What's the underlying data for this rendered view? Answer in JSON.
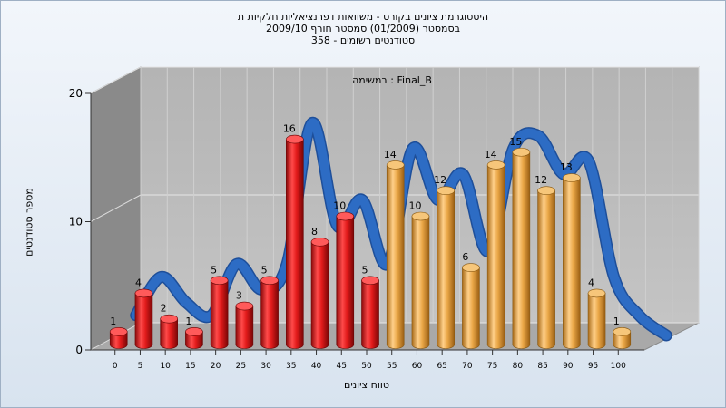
{
  "chart_data": {
    "type": "bar",
    "title_lines": [
      "היסטוגרמת ציונים בקורס - משוואות דפרנציאליות חלקיות ת",
      "בסמסטר  (01/2009)  סמסטר חורף 2009/10",
      "סטודנטים רשומים - 358"
    ],
    "task_label": "במשימה : Final_B",
    "xlabel": "טווח ציונים",
    "ylabel": "מספר סטודנטים",
    "x_ticks": [
      "0",
      "5",
      "10",
      "15",
      "20",
      "25",
      "30",
      "35",
      "40",
      "45",
      "50",
      "55",
      "60",
      "65",
      "70",
      "75",
      "80",
      "85",
      "90",
      "95",
      "100"
    ],
    "y_ticks": [
      0,
      10,
      20
    ],
    "ylim": [
      0,
      20
    ],
    "values": [
      1,
      4,
      2,
      1,
      5,
      3,
      5,
      16,
      8,
      10,
      5,
      14,
      10,
      12,
      6,
      14,
      15,
      12,
      13,
      4,
      1
    ],
    "colors": {
      "fail": "#d81e1e",
      "pass": "#e8a843",
      "curve": "#2d6cc4"
    },
    "pass_from_index": 11,
    "grid": true
  }
}
